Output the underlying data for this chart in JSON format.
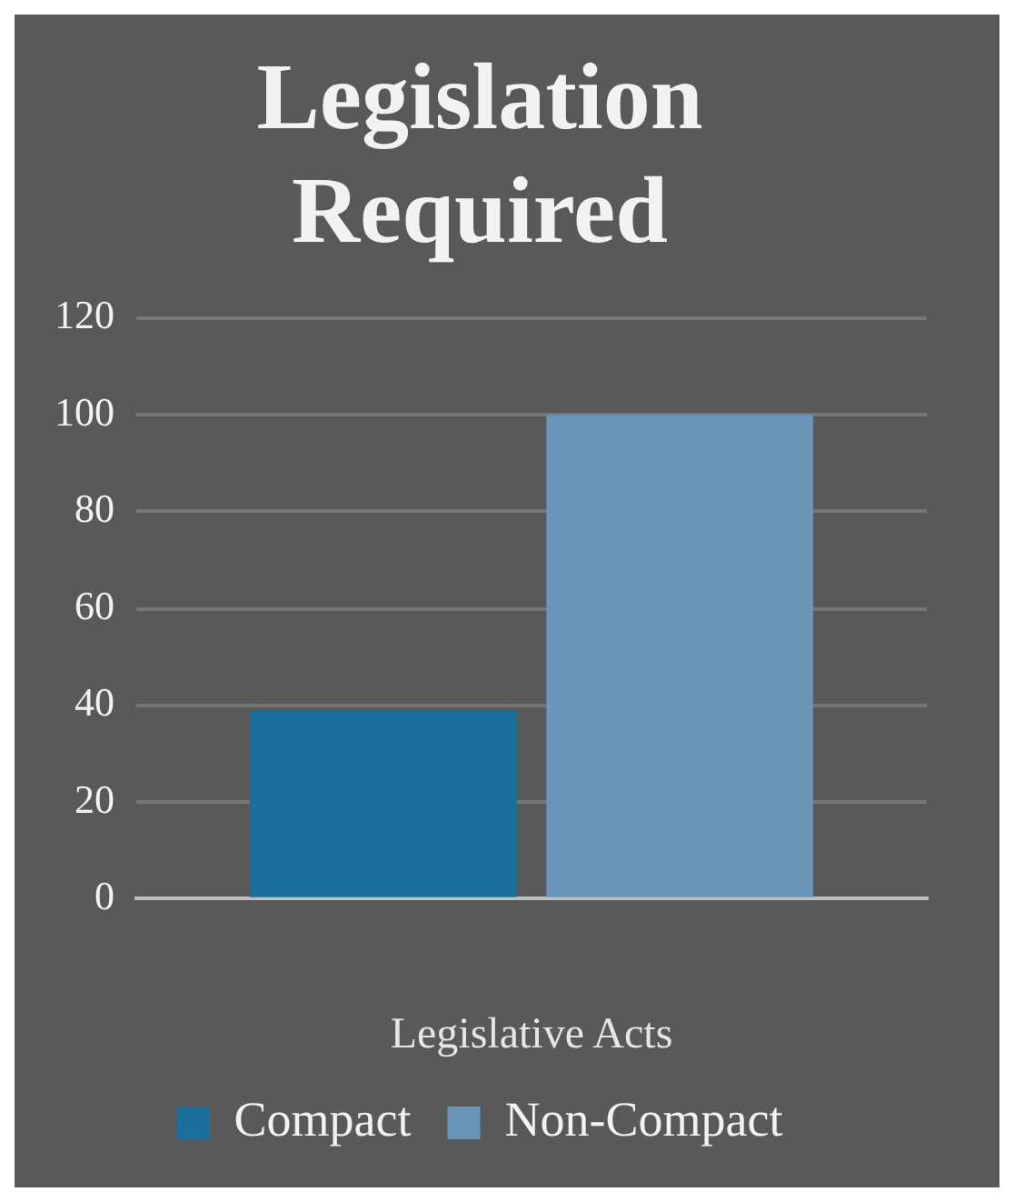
{
  "chart_data": {
    "type": "bar",
    "title": [
      "Legislation",
      "Required"
    ],
    "xlabel": "Legislative Acts",
    "categories": [
      null
    ],
    "series": [
      {
        "name": "Compact",
        "color": "#1a6f9c",
        "values": [
          39
        ]
      },
      {
        "name": "Non-Compact",
        "color": "#6a94b8",
        "values": [
          100
        ]
      }
    ],
    "ylim": [
      0,
      120
    ],
    "yticks": [
      0,
      20,
      40,
      60,
      80,
      100,
      120
    ],
    "grid": "y",
    "legend": "bottom"
  }
}
